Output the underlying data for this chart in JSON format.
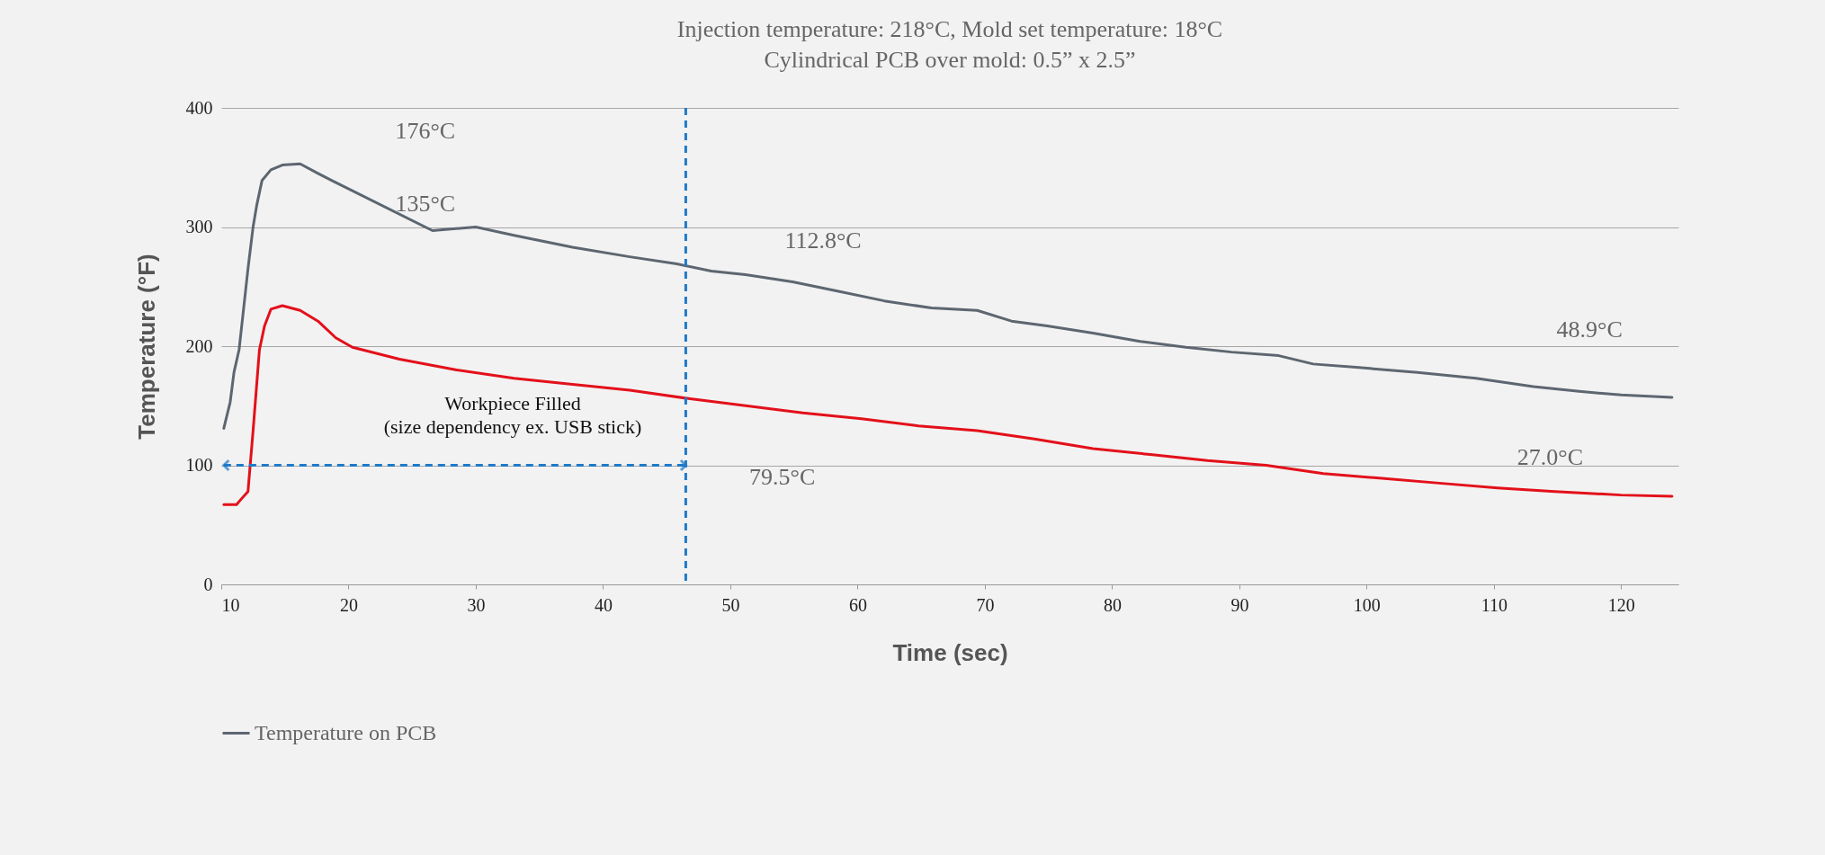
{
  "chart_data": {
    "type": "line",
    "title": "Injection temperature: 218°C, Mold set temperature: 18°C\nCylindrical PCB over mold: 0.5” x 2.5”",
    "xlabel": "Time (sec)",
    "ylabel": "Temperature (°F)",
    "xlim": [
      10,
      124.5
    ],
    "xticks": [
      10,
      20,
      30,
      40,
      50,
      60,
      70,
      80,
      90,
      100,
      110,
      120
    ],
    "ylim": [
      0,
      400
    ],
    "yticks": [
      0,
      100,
      200,
      300,
      400
    ],
    "grid": "y",
    "legend": "bottom",
    "marker": "none",
    "line_style": "solid",
    "series": [
      {
        "name": "Temperature on PCB",
        "color": "#5d6670",
        "x": [
          10.2,
          10.7,
          11.0,
          11.4,
          11.7,
          12.1,
          12.5,
          12.8,
          13.2,
          13.9,
          14.8,
          16.2,
          17.6,
          18.7,
          26.6,
          30,
          33.0,
          37.6,
          42.1,
          45.8,
          48.5,
          51.2,
          54.9,
          58.5,
          62.1,
          65.8,
          69.4,
          72.1,
          74.9,
          78.5,
          82.2,
          85.8,
          89.4,
          93.1,
          95.8,
          99.4,
          104,
          108.6,
          113.1,
          116.7,
          120,
          124
        ],
        "values": [
          131,
          153,
          178,
          197,
          226,
          265,
          300,
          319,
          339,
          348,
          352,
          353,
          345,
          339,
          297,
          300,
          293,
          283,
          275,
          269,
          263,
          260,
          254,
          246,
          238,
          232,
          230,
          221,
          217,
          211,
          204,
          199,
          195,
          192,
          185,
          182,
          178,
          173,
          166,
          162,
          159,
          157
        ]
      },
      {
        "color": "#e3101a",
        "x": [
          10.2,
          11.2,
          11.6,
          12.1,
          12.5,
          13.0,
          13.4,
          13.9,
          14.8,
          16.2,
          17.6,
          19.0,
          20.3,
          24.0,
          28.5,
          33.0,
          37.6,
          42.1,
          46.7,
          51.2,
          55.7,
          60.3,
          64.8,
          69.4,
          73.9,
          78.5,
          83.0,
          87.5,
          92.1,
          96.6,
          101.2,
          105.7,
          110.3,
          114.8,
          120,
          124
        ],
        "values": [
          67,
          67,
          72,
          78,
          129,
          197,
          217,
          231,
          234,
          230,
          221,
          207,
          199,
          189,
          180,
          173,
          168,
          163,
          156,
          150,
          144,
          139,
          133,
          129,
          122,
          114,
          109,
          104,
          100,
          93,
          89,
          85,
          81,
          78,
          75,
          74
        ]
      }
    ],
    "ref_lines": [
      {
        "axis": "x",
        "value": 46.5,
        "color": "#1f7ac8",
        "line_style": "dashed"
      }
    ],
    "annotations": [
      "176°C",
      "135°C",
      "112.8°C",
      "48.9°C",
      "27.0°C",
      "79.5°C",
      "Workpiece Filled\n(size dependency ex. USB stick)"
    ]
  }
}
